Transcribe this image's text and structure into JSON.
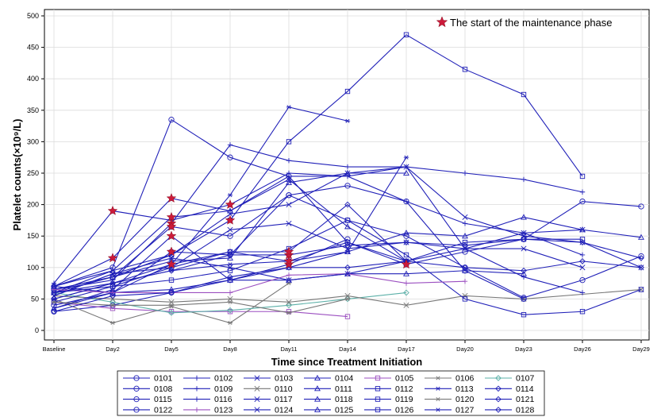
{
  "chart_data": {
    "type": "line",
    "xlabel": "Time since Treatment Initiation",
    "ylabel": "Platelet counts(×10⁹/L)",
    "annotation": "The start of the maintenance phase",
    "categories": [
      "Baseline",
      "Day2",
      "Day5",
      "Day8",
      "Day11",
      "Day14",
      "Day17",
      "Day20",
      "Day23",
      "Day26",
      "Day29"
    ],
    "ylim": [
      0,
      500
    ],
    "yticks": [
      0,
      50,
      100,
      150,
      200,
      250,
      300,
      350,
      400,
      450,
      500
    ],
    "grid": true,
    "legend_position": "bottom",
    "marker_color": "#cc1a3a",
    "series": [
      {
        "name": "0101",
        "color": "#2020b8",
        "values": [
          30,
          40,
          60,
          80,
          105,
          145,
          null,
          null,
          null,
          null,
          null
        ],
        "star": [
          4
        ]
      },
      {
        "name": "0102",
        "color": "#2020b8",
        "values": [
          70,
          115,
          210,
          190,
          245,
          245,
          205,
          170,
          155,
          120,
          null
        ],
        "star": [
          1,
          2
        ]
      },
      {
        "name": "0103",
        "color": "#2020b8",
        "values": [
          60,
          95,
          120,
          185,
          200,
          250,
          260,
          180,
          150,
          140,
          100
        ],
        "star": []
      },
      {
        "name": "0104",
        "color": "#2020b8",
        "values": [
          60,
          85,
          110,
          115,
          235,
          250,
          250,
          null,
          null,
          null,
          null
        ],
        "star": []
      },
      {
        "name": "0105",
        "color": "#9b4fc0",
        "values": [
          45,
          35,
          30,
          30,
          30,
          22,
          null,
          null,
          null,
          null,
          null
        ],
        "star": []
      },
      {
        "name": "0106",
        "color": "#777777",
        "values": [
          50,
          12,
          38,
          12,
          75,
          null,
          null,
          null,
          null,
          null,
          null
        ],
        "star": []
      },
      {
        "name": "0107",
        "color": "#5bb0a8",
        "values": [
          60,
          45,
          28,
          32,
          40,
          50,
          60,
          null,
          null,
          null,
          null
        ],
        "star": []
      },
      {
        "name": "0108",
        "color": "#2020b8",
        "values": [
          70,
          100,
          335,
          275,
          245,
          140,
          105,
          125,
          145,
          205,
          197
        ],
        "star": [
          6
        ]
      },
      {
        "name": "0109",
        "color": "#2020b8",
        "values": [
          75,
          190,
          175,
          200,
          250,
          245,
          260,
          250,
          240,
          220,
          null
        ],
        "star": [
          1,
          3
        ]
      },
      {
        "name": "0110",
        "color": "#777777",
        "values": [
          55,
          50,
          45,
          50,
          45,
          55,
          40,
          55,
          50,
          null,
          65
        ],
        "star": []
      },
      {
        "name": "0111",
        "color": "#2020b8",
        "values": [
          35,
          60,
          65,
          80,
          100,
          125,
          155,
          150,
          180,
          160,
          148
        ],
        "star": []
      },
      {
        "name": "0112",
        "color": "#2020b8",
        "values": [
          65,
          85,
          120,
          175,
          300,
          380,
          470,
          415,
          375,
          245,
          null
        ],
        "star": [
          3
        ]
      },
      {
        "name": "0113",
        "color": "#2020b8",
        "values": [
          60,
          75,
          105,
          215,
          355,
          333,
          null,
          null,
          null,
          null,
          null
        ],
        "star": []
      },
      {
        "name": "0114",
        "color": "#2020b8",
        "values": [
          50,
          75,
          95,
          120,
          120,
          135,
          140,
          135,
          145,
          140,
          115
        ],
        "star": [
          4
        ]
      },
      {
        "name": "0115",
        "color": "#2020b8",
        "values": [
          40,
          60,
          125,
          120,
          215,
          175,
          150,
          100,
          52,
          80,
          118
        ],
        "star": [
          2
        ]
      },
      {
        "name": "0116",
        "color": "#2020b8",
        "values": [
          65,
          80,
          170,
          295,
          270,
          260,
          260,
          130,
          85,
          60,
          null
        ],
        "star": [
          2
        ]
      },
      {
        "name": "0117",
        "color": "#2020b8",
        "values": [
          55,
          90,
          100,
          160,
          170,
          130,
          140,
          130,
          130,
          100,
          null
        ],
        "star": []
      },
      {
        "name": "0118",
        "color": "#2020b8",
        "values": [
          35,
          65,
          150,
          80,
          80,
          90,
          90,
          95,
          90,
          null,
          null
        ],
        "star": [
          2
        ]
      },
      {
        "name": "0119",
        "color": "#2020b8",
        "values": [
          45,
          70,
          80,
          95,
          130,
          175,
          120,
          50,
          25,
          30,
          65
        ],
        "star": []
      },
      {
        "name": "0120",
        "color": "#777777",
        "values": [
          45,
          40,
          40,
          45,
          28,
          50,
          null,
          null,
          null,
          null,
          null
        ],
        "star": []
      },
      {
        "name": "0121",
        "color": "#2020b8",
        "values": [
          70,
          60,
          105,
          125,
          125,
          200,
          110,
          null,
          null,
          null,
          null
        ],
        "star": [
          2,
          4
        ]
      },
      {
        "name": "0122",
        "color": "#2020b8",
        "values": [
          65,
          85,
          165,
          150,
          215,
          230,
          205,
          95,
          50,
          null,
          null
        ],
        "star": [
          2
        ]
      },
      {
        "name": "0123",
        "color": "#9b4fc0",
        "values": [
          65,
          60,
          60,
          60,
          88,
          90,
          75,
          78,
          null,
          null,
          null
        ],
        "star": []
      },
      {
        "name": "0124",
        "color": "#2020b8",
        "values": [
          55,
          90,
          115,
          100,
          80,
          90,
          110,
          130,
          155,
          160,
          null
        ],
        "star": []
      },
      {
        "name": "0125",
        "color": "#2020b8",
        "values": [
          70,
          95,
          180,
          190,
          240,
          165,
          110,
          null,
          null,
          null,
          null
        ],
        "star": [
          2
        ]
      },
      {
        "name": "0126",
        "color": "#2020b8",
        "values": [
          60,
          70,
          100,
          125,
          110,
          140,
          110,
          140,
          145,
          145,
          null
        ],
        "star": [
          4
        ]
      },
      {
        "name": "0127",
        "color": "#2020b8",
        "values": [
          50,
          75,
          95,
          105,
          110,
          125,
          275,
          null,
          null,
          null,
          null
        ],
        "star": []
      },
      {
        "name": "0128",
        "color": "#2020b8",
        "values": [
          30,
          55,
          60,
          85,
          100,
          100,
          110,
          100,
          95,
          110,
          100
        ],
        "star": []
      }
    ],
    "legend_columns": 7
  }
}
